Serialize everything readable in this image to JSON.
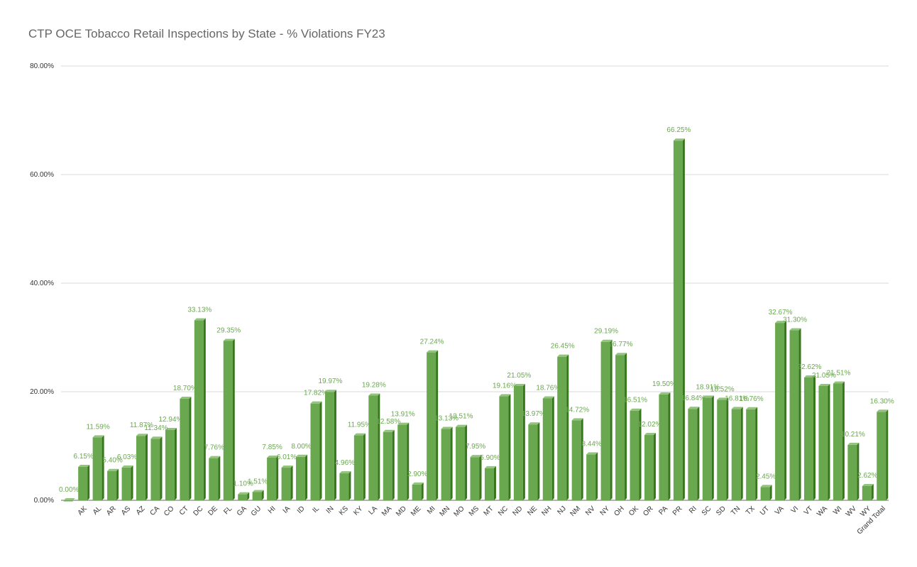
{
  "title": "CTP OCE Tobacco Retail Inspections by State - % Violations FY23",
  "colors": {
    "bar_front": "#6aa84f",
    "bar_side": "#38761d",
    "bar_top": "#93c47d",
    "label": "#6aa84f",
    "grid": "#d9d9d9"
  },
  "chart_data": {
    "type": "bar",
    "title": "CTP OCE Tobacco Retail Inspections by State - % Violations FY23",
    "xlabel": "",
    "ylabel": "",
    "ylim": [
      0,
      80
    ],
    "y_ticks": [
      {
        "value": 0,
        "label": "0.00%"
      },
      {
        "value": 20,
        "label": "20.00%"
      },
      {
        "value": 40,
        "label": "40.00%"
      },
      {
        "value": 60,
        "label": "60.00%"
      },
      {
        "value": 80,
        "label": "80.00%"
      }
    ],
    "grid": true,
    "categories": [
      "",
      "AK",
      "AL",
      "AR",
      "AS",
      "AZ",
      "CA",
      "CO",
      "CT",
      "DC",
      "DE",
      "FL",
      "GA",
      "GU",
      "HI",
      "IA",
      "ID",
      "IL",
      "IN",
      "KS",
      "KY",
      "LA",
      "MA",
      "MD",
      "ME",
      "MI",
      "MN",
      "MO",
      "MS",
      "MT",
      "NC",
      "ND",
      "NE",
      "NH",
      "NJ",
      "NM",
      "NV",
      "NY",
      "OH",
      "OK",
      "OR",
      "PA",
      "PR",
      "RI",
      "SC",
      "SD",
      "TN",
      "TX",
      "UT",
      "VA",
      "VI",
      "VT",
      "WA",
      "WI",
      "WV",
      "WY",
      "Grand Total"
    ],
    "values": [
      0.0,
      6.15,
      11.59,
      5.4,
      6.03,
      11.87,
      11.34,
      12.94,
      18.7,
      33.13,
      7.76,
      29.35,
      1.1,
      1.51,
      7.85,
      6.01,
      8.0,
      17.82,
      19.97,
      4.96,
      11.95,
      19.28,
      12.58,
      13.91,
      2.9,
      27.24,
      13.13,
      13.51,
      7.95,
      5.9,
      19.16,
      21.05,
      13.97,
      18.76,
      26.45,
      14.72,
      8.44,
      29.19,
      26.77,
      16.51,
      12.02,
      19.5,
      66.25,
      16.84,
      18.91,
      18.52,
      16.81,
      16.76,
      2.45,
      32.67,
      31.3,
      22.62,
      21.05,
      21.51,
      10.21,
      2.62,
      16.3
    ],
    "data_labels": [
      "0.00%",
      "6.15%",
      "11.59%",
      "5.40%",
      "6.03%",
      "11.87%",
      "11.34%",
      "12.94%",
      "18.70%",
      "33.13%",
      "7.76%",
      "29.35%",
      "1.10%",
      "1.51%",
      "7.85%",
      "6.01%",
      "8.00%",
      "17.82%",
      "19.97%",
      "4.96%",
      "11.95%",
      "19.28%",
      "12.58%",
      "13.91%",
      "2.90%",
      "27.24%",
      "13.13%",
      "13.51%",
      "7.95%",
      "5.90%",
      "19.16%",
      "21.05%",
      "13.97%",
      "18.76%",
      "26.45%",
      "14.72%",
      "8.44%",
      "29.19%",
      "26.77%",
      "16.51%",
      "12.02%",
      "19.50%",
      "66.25%",
      "16.84%",
      "18.91%",
      "18.52%",
      "16.81%",
      "16.76%",
      "2.45%",
      "32.67%",
      "31.30%",
      "22.62%",
      "21.05%",
      "21.51%",
      "10.21%",
      "2.62%",
      "16.30%"
    ]
  }
}
